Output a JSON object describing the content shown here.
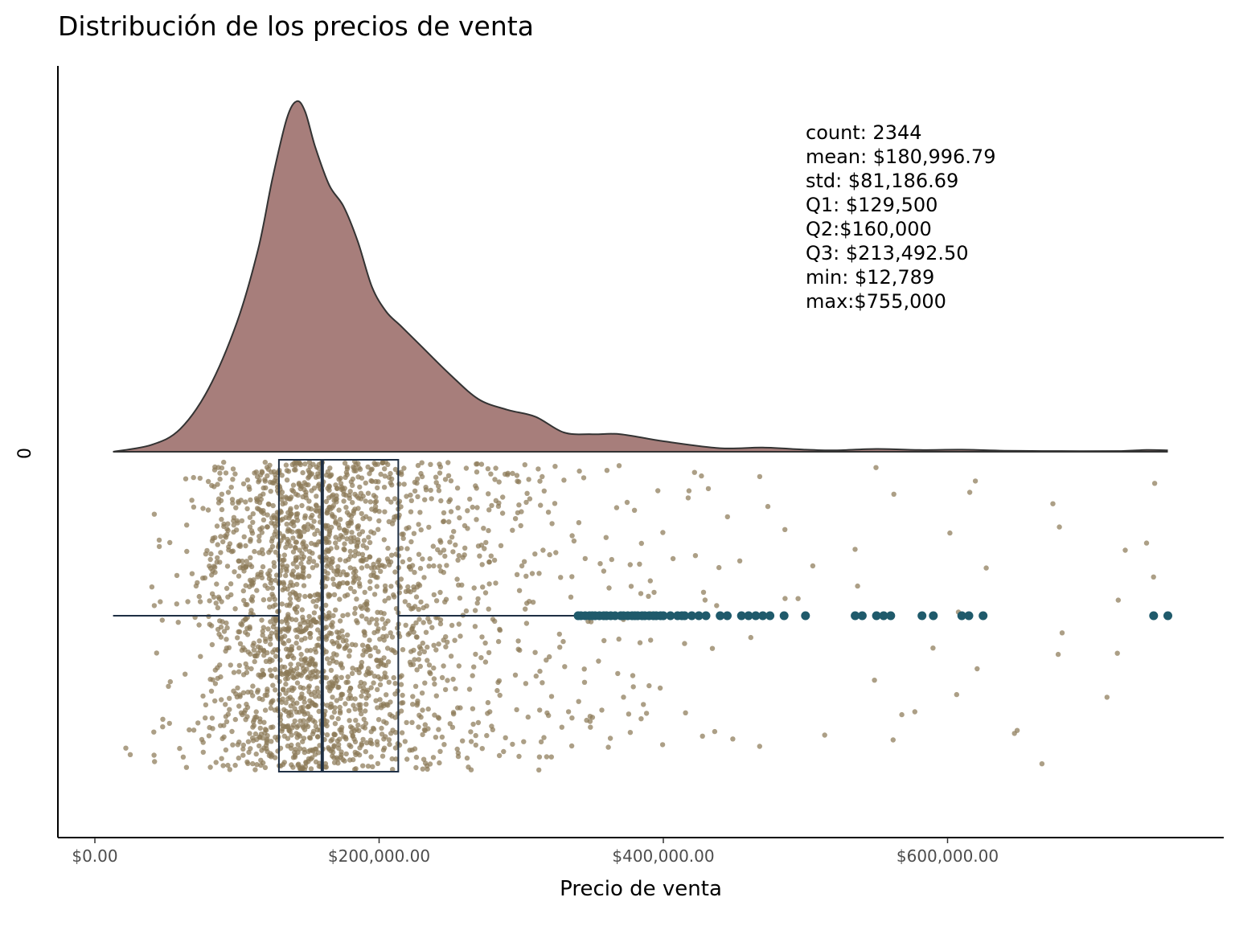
{
  "chart_data": {
    "type": "raincloud",
    "title": "Distribución de los precios de venta",
    "xlabel": "Precio de venta",
    "ylabel": "",
    "xlim": [
      -13000,
      790000
    ],
    "x_ticks": [
      {
        "value": 0,
        "label": "$0.00"
      },
      {
        "value": 200000,
        "label": "$200,000.00"
      },
      {
        "value": 400000,
        "label": "$400,000.00"
      },
      {
        "value": 600000,
        "label": "$600,000.00"
      }
    ],
    "y_ticks": [
      {
        "label": "0"
      }
    ],
    "stats_annotation": [
      "count: 2344",
      "mean: $180,996.79",
      "std: $81,186.69",
      "Q1: $129,500",
      "Q2:$160,000",
      "Q3: $213,492.50",
      "min: $12,789",
      "max:$755,000"
    ],
    "summary": {
      "count": 2344,
      "mean": 180996.79,
      "std": 81186.69,
      "q1": 129500,
      "median": 160000,
      "q3": 213492.5,
      "min": 12789,
      "max": 755000
    },
    "density": {
      "x": [
        12789,
        40000,
        60000,
        80000,
        100000,
        115000,
        125000,
        135000,
        142000,
        148000,
        155000,
        165000,
        175000,
        185000,
        195000,
        205000,
        215000,
        230000,
        250000,
        270000,
        290000,
        310000,
        330000,
        350000,
        370000,
        400000,
        440000,
        470000,
        500000,
        520000,
        550000,
        580000,
        610000,
        640000,
        680000,
        720000,
        740000,
        755000
      ],
      "y": [
        0.0,
        0.02,
        0.065,
        0.18,
        0.37,
        0.58,
        0.78,
        0.95,
        1.0,
        0.97,
        0.87,
        0.76,
        0.7,
        0.6,
        0.47,
        0.4,
        0.36,
        0.3,
        0.22,
        0.15,
        0.12,
        0.1,
        0.055,
        0.05,
        0.05,
        0.03,
        0.01,
        0.012,
        0.006,
        0.004,
        0.008,
        0.005,
        0.006,
        0.003,
        0.002,
        0.002,
        0.005,
        0.004
      ]
    },
    "boxplot": {
      "q1": 129500,
      "median": 160000,
      "q3": 213492.5,
      "whisker_low": 12789,
      "whisker_high": 338000
    },
    "outliers": [
      340000,
      342000,
      345000,
      348000,
      350000,
      352000,
      355000,
      358000,
      360000,
      363000,
      366000,
      370000,
      372000,
      375000,
      378000,
      380000,
      382000,
      385000,
      387000,
      390000,
      393000,
      395000,
      398000,
      400000,
      405000,
      410000,
      413000,
      415000,
      420000,
      425000,
      430000,
      440000,
      445000,
      455000,
      460000,
      465000,
      470000,
      475000,
      485000,
      500000,
      535000,
      540000,
      550000,
      555000,
      560000,
      582000,
      590000,
      610000,
      615000,
      625000,
      745000,
      755000
    ],
    "colors": {
      "density_fill": "#a77e7b",
      "density_stroke": "#333333",
      "points": "#8c7a57",
      "outliers": "#1f5a6b",
      "box": "#1e2f44",
      "axis": "#000000"
    }
  }
}
